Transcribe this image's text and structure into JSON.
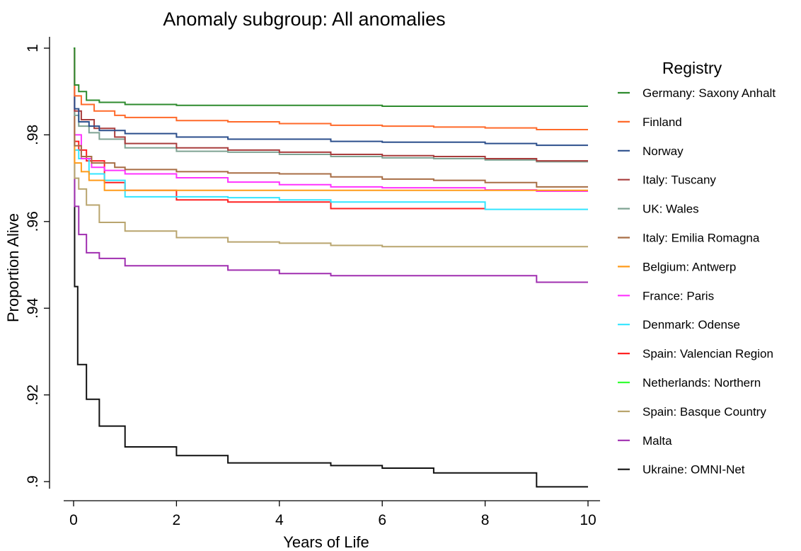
{
  "chart_data": {
    "type": "line",
    "title": "Anomaly subgroup: All anomalies",
    "xlabel": "Years of Life",
    "ylabel": "Proportion Alive",
    "xlim": [
      0,
      10
    ],
    "ylim": [
      0.896,
      1.0
    ],
    "x_ticks": [
      0,
      2,
      4,
      6,
      8,
      10
    ],
    "y_ticks": [
      0.9,
      0.92,
      0.94,
      0.96,
      0.98,
      1.0
    ],
    "x_tick_labels": [
      "0",
      "2",
      "4",
      "6",
      "8",
      "10"
    ],
    "y_tick_labels": [
      ".9",
      ".92",
      ".94",
      ".96",
      ".98",
      "1"
    ],
    "grid": false,
    "legend_title": "Registry",
    "legend_position": "right",
    "step": true,
    "series": [
      {
        "name": "Germany: Saxony Anhalt",
        "color": "#2e8b2e",
        "points": [
          [
            0,
            1.0
          ],
          [
            0.02,
            0.9915
          ],
          [
            0.1,
            0.99
          ],
          [
            0.25,
            0.988
          ],
          [
            0.5,
            0.9875
          ],
          [
            1,
            0.987
          ],
          [
            2,
            0.9868
          ],
          [
            6,
            0.9866
          ],
          [
            10,
            0.9866
          ]
        ]
      },
      {
        "name": "Finland",
        "color": "#ff6a2a",
        "points": [
          [
            0,
            1.0
          ],
          [
            0.02,
            0.989
          ],
          [
            0.15,
            0.987
          ],
          [
            0.4,
            0.9855
          ],
          [
            0.8,
            0.9845
          ],
          [
            1,
            0.984
          ],
          [
            2,
            0.9833
          ],
          [
            3,
            0.983
          ],
          [
            4,
            0.9826
          ],
          [
            5,
            0.9822
          ],
          [
            6,
            0.982
          ],
          [
            7,
            0.9818
          ],
          [
            8,
            0.9816
          ],
          [
            9,
            0.9812
          ],
          [
            10,
            0.9812
          ]
        ]
      },
      {
        "name": "Norway",
        "color": "#2c4f8c",
        "points": [
          [
            0,
            1.0
          ],
          [
            0.02,
            0.986
          ],
          [
            0.1,
            0.983
          ],
          [
            0.3,
            0.982
          ],
          [
            0.5,
            0.981
          ],
          [
            1,
            0.9803
          ],
          [
            2,
            0.9795
          ],
          [
            3,
            0.979
          ],
          [
            5,
            0.9785
          ],
          [
            6,
            0.9783
          ],
          [
            8,
            0.978
          ],
          [
            9,
            0.9776
          ],
          [
            10,
            0.9776
          ]
        ]
      },
      {
        "name": "Italy: Tuscany",
        "color": "#a83d3d",
        "points": [
          [
            0,
            1.0
          ],
          [
            0.02,
            0.9855
          ],
          [
            0.15,
            0.9835
          ],
          [
            0.4,
            0.9815
          ],
          [
            0.8,
            0.9795
          ],
          [
            1,
            0.978
          ],
          [
            2,
            0.977
          ],
          [
            3,
            0.9765
          ],
          [
            4,
            0.976
          ],
          [
            5,
            0.9755
          ],
          [
            6,
            0.9752
          ],
          [
            7,
            0.975
          ],
          [
            8,
            0.9745
          ],
          [
            9,
            0.974
          ],
          [
            10,
            0.974
          ]
        ]
      },
      {
        "name": "UK: Wales",
        "color": "#7fa393",
        "points": [
          [
            0,
            1.0
          ],
          [
            0.02,
            0.9845
          ],
          [
            0.1,
            0.982
          ],
          [
            0.3,
            0.9805
          ],
          [
            0.5,
            0.979
          ],
          [
            1,
            0.977
          ],
          [
            2,
            0.9762
          ],
          [
            3,
            0.976
          ],
          [
            4,
            0.9755
          ],
          [
            5,
            0.975
          ],
          [
            6,
            0.9747
          ],
          [
            7,
            0.9745
          ],
          [
            8,
            0.9742
          ],
          [
            9,
            0.9738
          ],
          [
            10,
            0.9738
          ]
        ]
      },
      {
        "name": "Italy: Emilia Romagna",
        "color": "#a86e45",
        "points": [
          [
            0,
            1.0
          ],
          [
            0.02,
            0.9775
          ],
          [
            0.15,
            0.975
          ],
          [
            0.35,
            0.9735
          ],
          [
            0.8,
            0.9725
          ],
          [
            1,
            0.972
          ],
          [
            2,
            0.9715
          ],
          [
            3,
            0.9712
          ],
          [
            4,
            0.971
          ],
          [
            5,
            0.9703
          ],
          [
            6,
            0.9698
          ],
          [
            7,
            0.9695
          ],
          [
            8,
            0.969
          ],
          [
            9,
            0.968
          ],
          [
            10,
            0.968
          ]
        ]
      },
      {
        "name": "Belgium: Antwerp",
        "color": "#ff9b1a",
        "points": [
          [
            0,
            1.0
          ],
          [
            0.02,
            0.9735
          ],
          [
            0.15,
            0.9715
          ],
          [
            0.3,
            0.9695
          ],
          [
            0.6,
            0.9672
          ],
          [
            10,
            0.9672
          ]
        ]
      },
      {
        "name": "France: Paris",
        "color": "#ff33ff",
        "points": [
          [
            0,
            1.0
          ],
          [
            0.02,
            0.98
          ],
          [
            0.15,
            0.9745
          ],
          [
            0.35,
            0.9725
          ],
          [
            0.6,
            0.9718
          ],
          [
            1,
            0.971
          ],
          [
            2,
            0.9701
          ],
          [
            3,
            0.9691
          ],
          [
            4,
            0.9685
          ],
          [
            5,
            0.968
          ],
          [
            6,
            0.9678
          ],
          [
            8,
            0.9673
          ],
          [
            9,
            0.967
          ],
          [
            10,
            0.967
          ]
        ]
      },
      {
        "name": "Denmark: Odense",
        "color": "#33e5ff",
        "points": [
          [
            0,
            1.0
          ],
          [
            0.02,
            0.9765
          ],
          [
            0.1,
            0.9745
          ],
          [
            0.3,
            0.971
          ],
          [
            0.6,
            0.9695
          ],
          [
            1,
            0.9657
          ],
          [
            3,
            0.9655
          ],
          [
            4,
            0.965
          ],
          [
            5,
            0.9645
          ],
          [
            8,
            0.9628
          ],
          [
            10,
            0.9628
          ]
        ]
      },
      {
        "name": "Spain: Valencian Region",
        "color": "#ff2222",
        "points": [
          [
            0,
            1.0
          ],
          [
            0.02,
            0.9785
          ],
          [
            0.1,
            0.9765
          ],
          [
            0.25,
            0.974
          ],
          [
            0.6,
            0.969
          ],
          [
            1,
            0.9672
          ],
          [
            2,
            0.965
          ],
          [
            3,
            0.9645
          ],
          [
            4,
            0.9645
          ],
          [
            5,
            0.963
          ],
          [
            8,
            0.963
          ]
        ]
      },
      {
        "name": "Netherlands: Northern",
        "color": "#33ff33",
        "points": []
      },
      {
        "name": "Spain: Basque Country",
        "color": "#b9a56e",
        "points": [
          [
            0,
            1.0
          ],
          [
            0.02,
            0.97
          ],
          [
            0.1,
            0.9675
          ],
          [
            0.25,
            0.9638
          ],
          [
            0.5,
            0.9598
          ],
          [
            1,
            0.9578
          ],
          [
            2,
            0.9563
          ],
          [
            3,
            0.9553
          ],
          [
            4,
            0.955
          ],
          [
            5,
            0.9545
          ],
          [
            6,
            0.9542
          ],
          [
            10,
            0.9542
          ]
        ]
      },
      {
        "name": "Malta",
        "color": "#a02fb0",
        "points": [
          [
            0,
            1.0
          ],
          [
            0.02,
            0.9635
          ],
          [
            0.1,
            0.957
          ],
          [
            0.25,
            0.9528
          ],
          [
            0.5,
            0.9515
          ],
          [
            1,
            0.9498
          ],
          [
            3,
            0.9488
          ],
          [
            4,
            0.948
          ],
          [
            5,
            0.9475
          ],
          [
            8,
            0.9475
          ],
          [
            9,
            0.946
          ],
          [
            10,
            0.946
          ]
        ]
      },
      {
        "name": "Ukraine: OMNI-Net",
        "color": "#111111",
        "points": [
          [
            0,
            1.0
          ],
          [
            0.02,
            0.945
          ],
          [
            0.08,
            0.945
          ],
          [
            0.08,
            0.927
          ],
          [
            0.25,
            0.919
          ],
          [
            0.5,
            0.9128
          ],
          [
            1,
            0.908
          ],
          [
            2,
            0.906
          ],
          [
            3,
            0.9043
          ],
          [
            5,
            0.9037
          ],
          [
            6,
            0.9031
          ],
          [
            7,
            0.902
          ],
          [
            9,
            0.8988
          ],
          [
            10,
            0.8988
          ]
        ]
      }
    ]
  }
}
